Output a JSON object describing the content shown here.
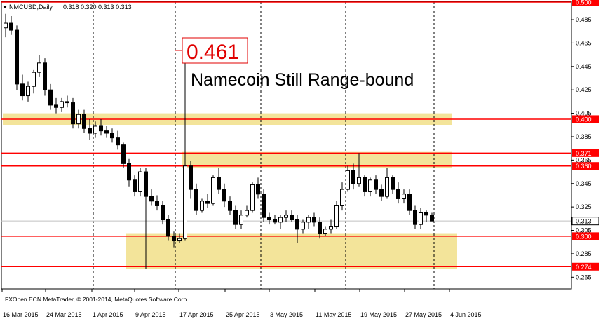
{
  "header": {
    "symbol": "NMCUSD,Daily",
    "ohlc": "0.318 0.320 0.313 0.313",
    "menu_icon": "triangle-down-icon"
  },
  "annotation": {
    "spike_value": "0.461",
    "headline": "Namecoin Still Range-bound"
  },
  "footer": "FXOpen ECN MetaTrader, © 2001-2014, MetaQuotes Software Corp.",
  "colors": {
    "level_line": "#ff0000",
    "zone_fill": "#f3e49a",
    "bull_candle": "#ffffff",
    "bear_candle": "#000000",
    "current_price_line": "#c0c0c0",
    "grid": "#000000"
  },
  "chart_data": {
    "type": "candlestick",
    "y_range": [
      0.255,
      0.5
    ],
    "y_ticks": [
      "0.485",
      "0.465",
      "0.445",
      "0.425",
      "0.405",
      "0.385",
      "0.365",
      "0.345",
      "0.325",
      "0.305",
      "0.285",
      "0.265"
    ],
    "x_ticks": [
      "16 Mar 2015",
      "24 Mar 2015",
      "1 Apr 2015",
      "9 Apr 2015",
      "17 Apr 2015",
      "25 Apr 2015",
      "3 May 2015",
      "11 May 2015",
      "19 May 2015",
      "27 May 2015",
      "4 Jun 2015"
    ],
    "grid": "vertical dashed",
    "current_price": "0.313",
    "levels": [
      {
        "value": 0.5,
        "label": "0.500"
      },
      {
        "value": 0.4,
        "label": "0.400"
      },
      {
        "value": 0.371,
        "label": "0.371"
      },
      {
        "value": 0.36,
        "label": "0.360"
      },
      {
        "value": 0.3,
        "label": "0.300"
      },
      {
        "value": 0.274,
        "label": "0.274"
      }
    ],
    "zones": [
      {
        "from_bar": 0,
        "to_bar": 79,
        "low": 0.395,
        "high": 0.405
      },
      {
        "from_bar": 32,
        "to_bar": 79,
        "low": 0.358,
        "high": 0.372
      },
      {
        "from_bar": 22,
        "to_bar": 80,
        "low": 0.272,
        "high": 0.302
      }
    ],
    "candles": [
      [
        0.478,
        0.49,
        0.47,
        0.482
      ],
      [
        0.482,
        0.488,
        0.472,
        0.476
      ],
      [
        0.476,
        0.48,
        0.425,
        0.43
      ],
      [
        0.43,
        0.438,
        0.416,
        0.42
      ],
      [
        0.42,
        0.432,
        0.415,
        0.428
      ],
      [
        0.428,
        0.442,
        0.422,
        0.44
      ],
      [
        0.44,
        0.455,
        0.436,
        0.448
      ],
      [
        0.448,
        0.452,
        0.42,
        0.425
      ],
      [
        0.425,
        0.43,
        0.408,
        0.412
      ],
      [
        0.412,
        0.418,
        0.405,
        0.41
      ],
      [
        0.41,
        0.418,
        0.406,
        0.415
      ],
      [
        0.415,
        0.42,
        0.41,
        0.414
      ],
      [
        0.414,
        0.418,
        0.392,
        0.396
      ],
      [
        0.396,
        0.408,
        0.392,
        0.404
      ],
      [
        0.404,
        0.408,
        0.388,
        0.392
      ],
      [
        0.392,
        0.4,
        0.382,
        0.388
      ],
      [
        0.388,
        0.398,
        0.384,
        0.394
      ],
      [
        0.394,
        0.4,
        0.386,
        0.39
      ],
      [
        0.39,
        0.394,
        0.384,
        0.388
      ],
      [
        0.388,
        0.392,
        0.38,
        0.384
      ],
      [
        0.384,
        0.39,
        0.374,
        0.378
      ],
      [
        0.378,
        0.38,
        0.358,
        0.362
      ],
      [
        0.362,
        0.366,
        0.342,
        0.348
      ],
      [
        0.348,
        0.352,
        0.334,
        0.338
      ],
      [
        0.338,
        0.358,
        0.334,
        0.355
      ],
      [
        0.355,
        0.358,
        0.272,
        0.334
      ],
      [
        0.334,
        0.34,
        0.326,
        0.33
      ],
      [
        0.33,
        0.335,
        0.322,
        0.326
      ],
      [
        0.326,
        0.33,
        0.31,
        0.314
      ],
      [
        0.314,
        0.318,
        0.296,
        0.3
      ],
      [
        0.3,
        0.304,
        0.29,
        0.296
      ],
      [
        0.296,
        0.302,
        0.294,
        0.298
      ],
      [
        0.298,
        0.461,
        0.296,
        0.36
      ],
      [
        0.36,
        0.364,
        0.332,
        0.34
      ],
      [
        0.34,
        0.345,
        0.318,
        0.322
      ],
      [
        0.322,
        0.332,
        0.32,
        0.33
      ],
      [
        0.33,
        0.336,
        0.324,
        0.328
      ],
      [
        0.328,
        0.352,
        0.326,
        0.35
      ],
      [
        0.35,
        0.358,
        0.336,
        0.34
      ],
      [
        0.34,
        0.345,
        0.325,
        0.33
      ],
      [
        0.33,
        0.334,
        0.318,
        0.322
      ],
      [
        0.322,
        0.326,
        0.306,
        0.31
      ],
      [
        0.31,
        0.322,
        0.306,
        0.318
      ],
      [
        0.318,
        0.326,
        0.316,
        0.322
      ],
      [
        0.322,
        0.346,
        0.32,
        0.344
      ],
      [
        0.344,
        0.35,
        0.332,
        0.336
      ],
      [
        0.336,
        0.34,
        0.312,
        0.316
      ],
      [
        0.316,
        0.32,
        0.31,
        0.314
      ],
      [
        0.314,
        0.318,
        0.31,
        0.312
      ],
      [
        0.312,
        0.318,
        0.306,
        0.316
      ],
      [
        0.316,
        0.322,
        0.312,
        0.318
      ],
      [
        0.318,
        0.322,
        0.312,
        0.314
      ],
      [
        0.314,
        0.318,
        0.294,
        0.306
      ],
      [
        0.306,
        0.314,
        0.302,
        0.312
      ],
      [
        0.312,
        0.318,
        0.306,
        0.316
      ],
      [
        0.316,
        0.32,
        0.308,
        0.312
      ],
      [
        0.312,
        0.316,
        0.298,
        0.302
      ],
      [
        0.302,
        0.308,
        0.3,
        0.306
      ],
      [
        0.306,
        0.314,
        0.302,
        0.308
      ],
      [
        0.308,
        0.33,
        0.306,
        0.326
      ],
      [
        0.326,
        0.346,
        0.322,
        0.34
      ],
      [
        0.34,
        0.36,
        0.338,
        0.356
      ],
      [
        0.356,
        0.362,
        0.34,
        0.345
      ],
      [
        0.345,
        0.371,
        0.342,
        0.35
      ],
      [
        0.35,
        0.352,
        0.334,
        0.338
      ],
      [
        0.338,
        0.35,
        0.334,
        0.348
      ],
      [
        0.348,
        0.352,
        0.336,
        0.34
      ],
      [
        0.34,
        0.344,
        0.33,
        0.334
      ],
      [
        0.334,
        0.358,
        0.332,
        0.35
      ],
      [
        0.35,
        0.352,
        0.336,
        0.34
      ],
      [
        0.34,
        0.346,
        0.328,
        0.332
      ],
      [
        0.332,
        0.34,
        0.328,
        0.336
      ],
      [
        0.336,
        0.34,
        0.318,
        0.322
      ],
      [
        0.322,
        0.326,
        0.306,
        0.31
      ],
      [
        0.31,
        0.324,
        0.306,
        0.32
      ],
      [
        0.32,
        0.322,
        0.312,
        0.318
      ],
      [
        0.318,
        0.32,
        0.313,
        0.313
      ]
    ]
  }
}
